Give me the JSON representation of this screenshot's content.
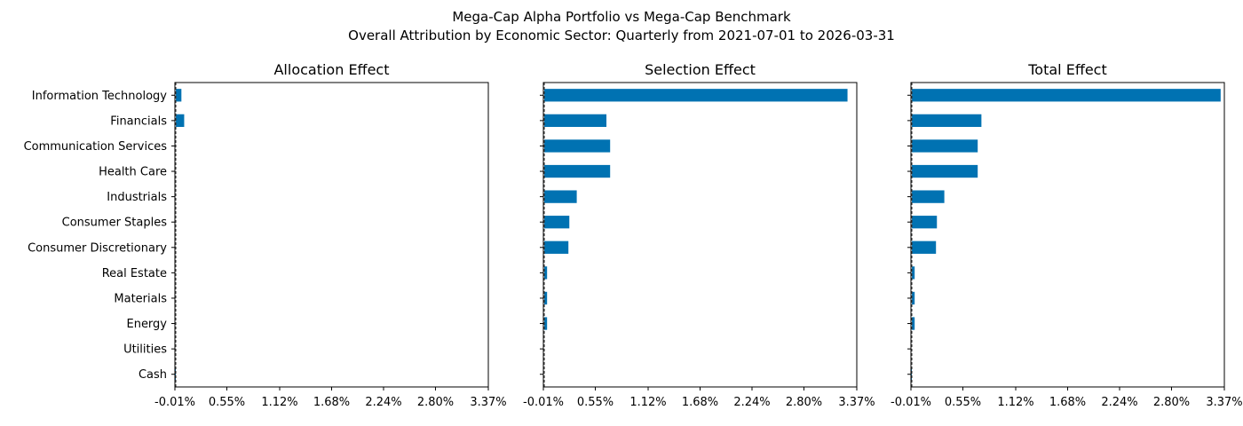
{
  "chart_data": [
    {
      "type": "bar",
      "orientation": "horizontal",
      "title": "Allocation Effect",
      "categories": [
        "Information Technology",
        "Financials",
        "Communication Services",
        "Health Care",
        "Industrials",
        "Consumer Staples",
        "Consumer Discretionary",
        "Real Estate",
        "Materials",
        "Energy",
        "Utilities",
        "Cash"
      ],
      "values": [
        0.06,
        0.09,
        0.0,
        0.0,
        0.0,
        0.0,
        0.0,
        0.0,
        0.0,
        0.0,
        0.0,
        -0.005
      ],
      "xlim": [
        -0.01,
        3.37
      ],
      "xticks": [
        -0.01,
        0.55,
        1.12,
        1.68,
        2.24,
        2.8,
        3.37
      ],
      "xtick_labels": [
        "-0.01%",
        "0.55%",
        "1.12%",
        "1.68%",
        "2.24%",
        "2.80%",
        "3.37%"
      ],
      "color": "#0072B2",
      "zero_line": true,
      "grid": false
    },
    {
      "type": "bar",
      "orientation": "horizontal",
      "title": "Selection Effect",
      "categories": [
        "Information Technology",
        "Financials",
        "Communication Services",
        "Health Care",
        "Industrials",
        "Consumer Staples",
        "Consumer Discretionary",
        "Real Estate",
        "Materials",
        "Energy",
        "Utilities",
        "Cash"
      ],
      "values": [
        3.27,
        0.67,
        0.71,
        0.71,
        0.35,
        0.27,
        0.26,
        0.03,
        0.03,
        0.03,
        0.0,
        0.0
      ],
      "xlim": [
        -0.01,
        3.37
      ],
      "xticks": [
        -0.01,
        0.55,
        1.12,
        1.68,
        2.24,
        2.8,
        3.37
      ],
      "xtick_labels": [
        "-0.01%",
        "0.55%",
        "1.12%",
        "1.68%",
        "2.24%",
        "2.80%",
        "3.37%"
      ],
      "color": "#0072B2",
      "zero_line": true,
      "grid": false
    },
    {
      "type": "bar",
      "orientation": "horizontal",
      "title": "Total Effect",
      "categories": [
        "Information Technology",
        "Financials",
        "Communication Services",
        "Health Care",
        "Industrials",
        "Consumer Staples",
        "Consumer Discretionary",
        "Real Estate",
        "Materials",
        "Energy",
        "Utilities",
        "Cash"
      ],
      "values": [
        3.33,
        0.75,
        0.71,
        0.71,
        0.35,
        0.27,
        0.26,
        0.03,
        0.03,
        0.03,
        0.0,
        -0.005
      ],
      "xlim": [
        -0.01,
        3.37
      ],
      "xticks": [
        -0.01,
        0.55,
        1.12,
        1.68,
        2.24,
        2.8,
        3.37
      ],
      "xtick_labels": [
        "-0.01%",
        "0.55%",
        "1.12%",
        "1.68%",
        "2.24%",
        "2.80%",
        "3.37%"
      ],
      "color": "#0072B2",
      "zero_line": true,
      "grid": false
    }
  ],
  "figure": {
    "title_line1": "Mega-Cap Alpha Portfolio vs Mega-Cap Benchmark",
    "title_line2": "Overall Attribution by Economic Sector: Quarterly from 2021-07-01 to 2026-03-31",
    "shared_y_labels": "left-only"
  }
}
